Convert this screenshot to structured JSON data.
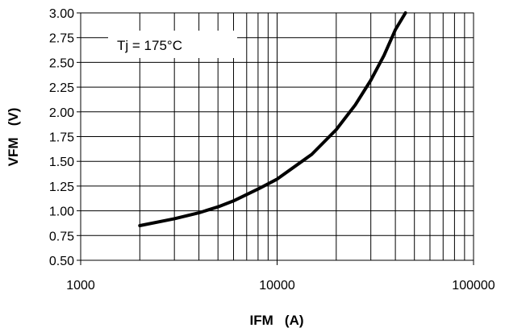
{
  "chart_data": {
    "type": "line",
    "x_scale": "log",
    "xlim": [
      1000,
      100000
    ],
    "ylim": [
      0.5,
      3.0
    ],
    "xlabel": "IFM   (A)",
    "ylabel": "VFM   (V)",
    "x_ticks": [
      "1000",
      "10000",
      "100000"
    ],
    "y_ticks": [
      "0.50",
      "0.75",
      "1.00",
      "1.25",
      "1.50",
      "1.75",
      "2.00",
      "2.25",
      "2.50",
      "2.75",
      "3.00"
    ],
    "grid": true,
    "annotation": "Tj = 175°C",
    "line_color": "#000000",
    "series": [
      {
        "x": [
          2000,
          3000,
          4000,
          5000,
          6000,
          8000,
          10000,
          15000,
          20000,
          25000,
          30000,
          35000,
          40000,
          45000
        ],
        "y": [
          0.85,
          0.92,
          0.98,
          1.04,
          1.1,
          1.22,
          1.32,
          1.57,
          1.82,
          2.07,
          2.32,
          2.57,
          2.83,
          3.0
        ]
      }
    ]
  }
}
